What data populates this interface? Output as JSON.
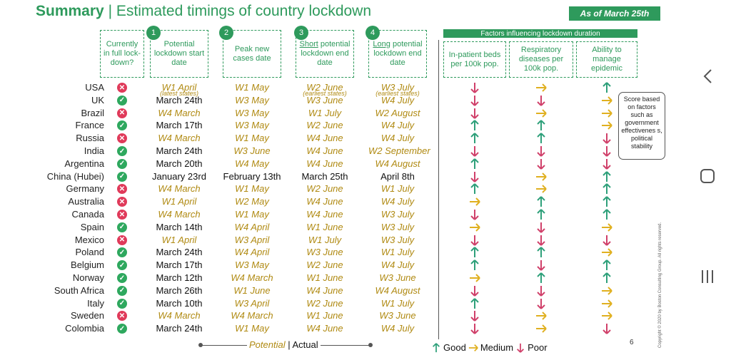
{
  "title": {
    "bold": "Summary",
    "separator": "|",
    "rest": "Estimated timings of country lockdown"
  },
  "as_of": "As of March 25th",
  "headers": {
    "currently": "Currently in full lock-down?",
    "col1": {
      "num": "1",
      "text": "Potential lockdown start date"
    },
    "col2": {
      "num": "2",
      "text": "Peak new cases date"
    },
    "col3": {
      "num": "3",
      "underline": "Short",
      "text": "potential lockdown end date"
    },
    "col4": {
      "num": "4",
      "underline": "Long",
      "text": "potential lockdown end date"
    }
  },
  "factors": {
    "title": "Factors influencing lockdown duration",
    "cols": [
      "In-patient beds per 100k pop.",
      "Respiratory diseases per 100k pop.",
      "Ability to manage epidemic"
    ]
  },
  "callout": "Score based on factors such as government effectivenes s, political stability",
  "rows": [
    {
      "country": "USA",
      "full": false,
      "start": "W1 April",
      "start_t": "pot",
      "start_sub": "(latest states)",
      "peak": "W1 May",
      "peak_t": "pot",
      "short": "W2 June",
      "short_t": "pot",
      "short_sub": "(earliest states)",
      "long": "W3 July",
      "long_t": "pot",
      "long_sub": "(earliest states)",
      "a": [
        "down",
        "right",
        "up"
      ]
    },
    {
      "country": "UK",
      "full": true,
      "start": "March 24th",
      "start_t": "act",
      "peak": "W3 May",
      "peak_t": "pot",
      "short": "W3 June",
      "short_t": "pot",
      "long": "W4 July",
      "long_t": "pot",
      "a": [
        "down",
        "down",
        "right"
      ]
    },
    {
      "country": "Brazil",
      "full": false,
      "start": "W4 March",
      "start_t": "pot",
      "peak": "W3 May",
      "peak_t": "pot",
      "short": "W1 July",
      "short_t": "pot",
      "long": "W2 August",
      "long_t": "pot",
      "a": [
        "down",
        "right",
        "right"
      ]
    },
    {
      "country": "France",
      "full": true,
      "start": "March 17th",
      "start_t": "act",
      "peak": "W3 May",
      "peak_t": "pot",
      "short": "W2 June",
      "short_t": "pot",
      "long": "W4 July",
      "long_t": "pot",
      "a": [
        "up",
        "up",
        "right"
      ]
    },
    {
      "country": "Russia",
      "full": false,
      "start": "W4 March",
      "start_t": "pot",
      "peak": "W1 May",
      "peak_t": "pot",
      "short": "W4 June",
      "short_t": "pot",
      "long": "W4 July",
      "long_t": "pot",
      "a": [
        "up",
        "up",
        "down"
      ]
    },
    {
      "country": "India",
      "full": true,
      "start": "March 24th",
      "start_t": "act",
      "peak": "W3 June",
      "peak_t": "pot",
      "short": "W4 June",
      "short_t": "pot",
      "long": "W2 September",
      "long_t": "pot",
      "a": [
        "down",
        "down",
        "down"
      ]
    },
    {
      "country": "Argentina",
      "full": true,
      "start": "March 20th",
      "start_t": "act",
      "peak": "W4 May",
      "peak_t": "pot",
      "short": "W4 June",
      "short_t": "pot",
      "long": "W4 August",
      "long_t": "pot",
      "a": [
        "up",
        "down",
        "down"
      ]
    },
    {
      "country": "China (Hubei)",
      "full": true,
      "start": "January 23rd",
      "start_t": "act",
      "peak": "February 13th",
      "peak_t": "act",
      "short": "March 25th",
      "short_t": "act",
      "long": "April 8th",
      "long_t": "act",
      "a": [
        "down",
        "right",
        "up"
      ]
    },
    {
      "country": "Germany",
      "full": false,
      "start": "W4 March",
      "start_t": "pot",
      "peak": "W1 May",
      "peak_t": "pot",
      "short": "W2 June",
      "short_t": "pot",
      "long": "W1 July",
      "long_t": "pot",
      "a": [
        "up",
        "right",
        "up"
      ]
    },
    {
      "country": "Australia",
      "full": false,
      "start": "W1 April",
      "start_t": "pot",
      "peak": "W2 May",
      "peak_t": "pot",
      "short": "W4 June",
      "short_t": "pot",
      "long": "W4 July",
      "long_t": "pot",
      "a": [
        "right",
        "up",
        "up"
      ]
    },
    {
      "country": "Canada",
      "full": false,
      "start": "W4 March",
      "start_t": "pot",
      "peak": "W1 May",
      "peak_t": "pot",
      "short": "W4 June",
      "short_t": "pot",
      "long": "W3 July",
      "long_t": "pot",
      "a": [
        "down",
        "up",
        "up"
      ]
    },
    {
      "country": "Spain",
      "full": true,
      "start": "March 14th",
      "start_t": "act",
      "peak": "W4 April",
      "peak_t": "pot",
      "short": "W1 June",
      "short_t": "pot",
      "long": "W3 July",
      "long_t": "pot",
      "a": [
        "right",
        "down",
        "right"
      ]
    },
    {
      "country": "Mexico",
      "full": false,
      "start": "W1 April",
      "start_t": "pot",
      "peak": "W3 April",
      "peak_t": "pot",
      "short": "W1 July",
      "short_t": "pot",
      "long": "W3 July",
      "long_t": "pot",
      "a": [
        "down",
        "down",
        "down"
      ]
    },
    {
      "country": "Poland",
      "full": true,
      "start": "March 24th",
      "start_t": "act",
      "peak": "W4 April",
      "peak_t": "pot",
      "short": "W3 June",
      "short_t": "pot",
      "long": "W1 July",
      "long_t": "pot",
      "a": [
        "up",
        "up",
        "right"
      ]
    },
    {
      "country": "Belgium",
      "full": true,
      "start": "March 17th",
      "start_t": "act",
      "peak": "W3 May",
      "peak_t": "pot",
      "short": "W2 June",
      "short_t": "pot",
      "long": "W4 July",
      "long_t": "pot",
      "a": [
        "up",
        "down",
        "up"
      ]
    },
    {
      "country": "Norway",
      "full": true,
      "start": "March 12th",
      "start_t": "act",
      "peak": "W4 March",
      "peak_t": "pot",
      "short": "W1 June",
      "short_t": "pot",
      "long": "W3 June",
      "long_t": "pot",
      "a": [
        "right",
        "up",
        "up"
      ]
    },
    {
      "country": "South Africa",
      "full": true,
      "start": "March 26th",
      "start_t": "act",
      "peak": "W1 June",
      "peak_t": "pot",
      "short": "W4 June",
      "short_t": "pot",
      "long": "W4 August",
      "long_t": "pot",
      "a": [
        "down",
        "down",
        "right"
      ]
    },
    {
      "country": "Italy",
      "full": true,
      "start": "March 10th",
      "start_t": "act",
      "peak": "W3 April",
      "peak_t": "pot",
      "short": "W2 June",
      "short_t": "pot",
      "long": "W1 July",
      "long_t": "pot",
      "a": [
        "up",
        "down",
        "right"
      ]
    },
    {
      "country": "Sweden",
      "full": false,
      "start": "W4 March",
      "start_t": "pot",
      "peak": "W4 March",
      "peak_t": "pot",
      "short": "W1 June",
      "short_t": "pot",
      "long": "W3 June",
      "long_t": "pot",
      "a": [
        "down",
        "right",
        "right"
      ]
    },
    {
      "country": "Colombia",
      "full": true,
      "start": "March 24th",
      "start_t": "act",
      "peak": "W1 May",
      "peak_t": "pot",
      "short": "W4 June",
      "short_t": "pot",
      "long": "W4 July",
      "long_t": "pot",
      "a": [
        "down",
        "right",
        "down"
      ]
    }
  ],
  "legend": {
    "potential": "Potential",
    "sep": "|",
    "actual": "Actual"
  },
  "arrow_legend": {
    "good": "Good",
    "medium": "Medium",
    "poor": "Poor"
  },
  "page_number": "6",
  "copyright": "Copyright © 2020 by Boston Consulting Group. All rights reserved.",
  "colors": {
    "brand": "#2e9a5c",
    "potential": "#b08a12",
    "good": "#2ea07a",
    "medium": "#e0b020",
    "poor": "#d0406a",
    "yes": "#2ea85e",
    "no": "#e03a5a"
  },
  "nav": {
    "back": "back-chevron-icon",
    "home": "home-square-icon",
    "recents": "recents-bars-icon"
  }
}
